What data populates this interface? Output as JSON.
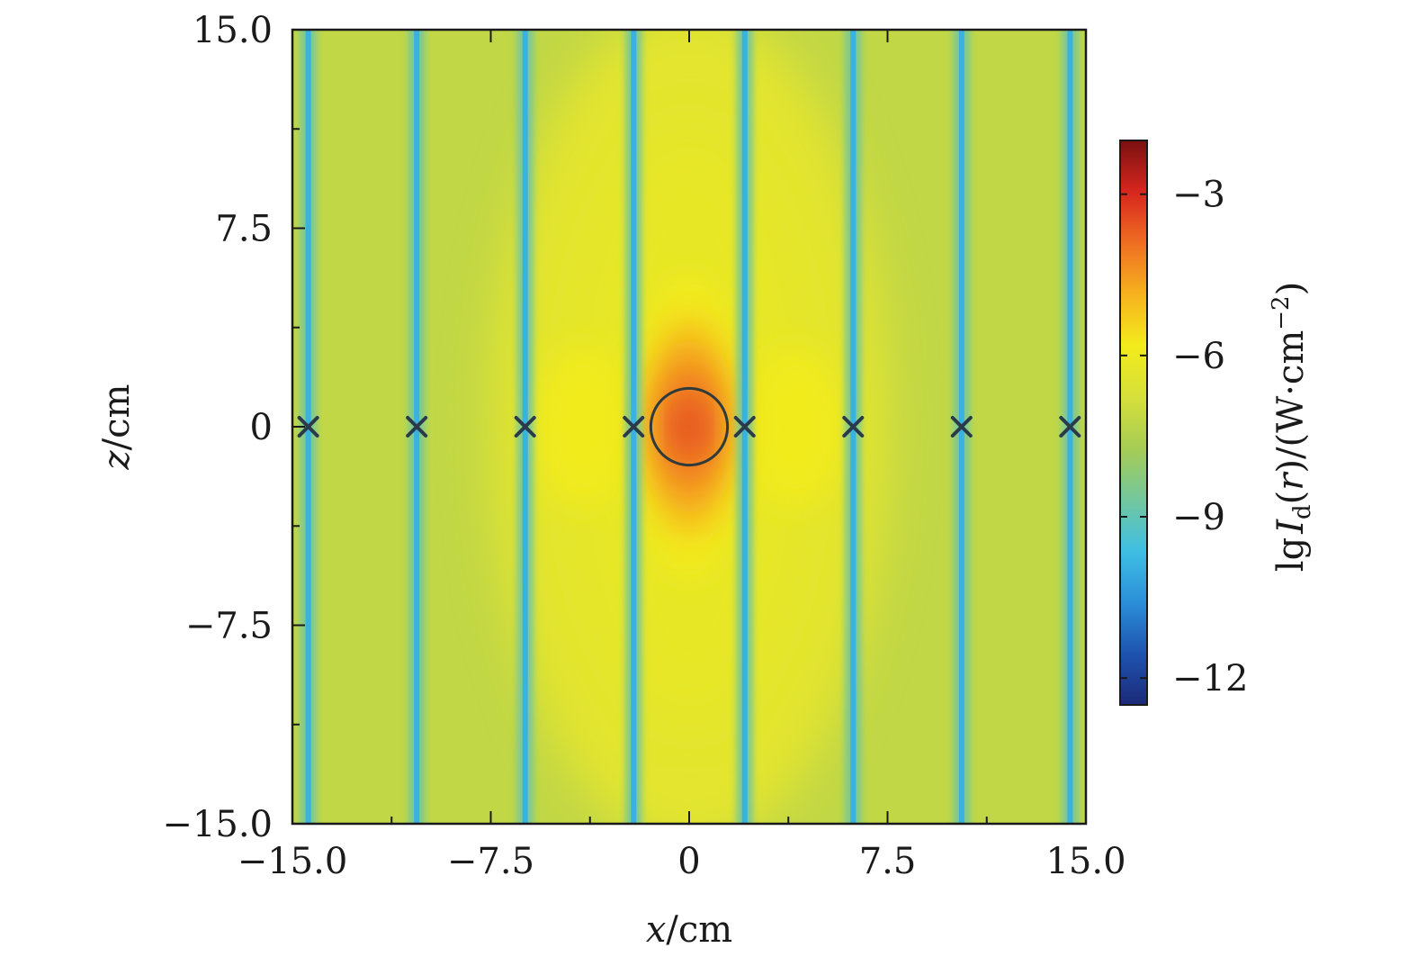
{
  "chart_data": {
    "type": "heatmap",
    "xlabel": {
      "var": "x",
      "unit": "/cm"
    },
    "ylabel": {
      "var": "z",
      "unit": "/cm"
    },
    "xlim": [
      -15.0,
      15.0
    ],
    "ylim": [
      -15.0,
      15.0
    ],
    "x_ticks": [
      {
        "value": -15.0,
        "label": "−15.0"
      },
      {
        "value": -7.5,
        "label": "−7.5"
      },
      {
        "value": 0,
        "label": "0"
      },
      {
        "value": 7.5,
        "label": "7.5"
      },
      {
        "value": 15.0,
        "label": "15.0"
      }
    ],
    "y_ticks": [
      {
        "value": 15.0,
        "label": "15.0"
      },
      {
        "value": 7.5,
        "label": "7.5"
      },
      {
        "value": 0,
        "label": "0"
      },
      {
        "value": -7.5,
        "label": "−7.5"
      },
      {
        "value": -15.0,
        "label": "−15.0"
      }
    ],
    "minor_ticks": [
      -11.25,
      -3.75,
      3.75,
      11.25
    ],
    "colorbar": {
      "label_parts": {
        "lg": "lg",
        "I": "I",
        "sub": "d",
        "arg_open": "(",
        "arg": "r",
        "arg_close": ")",
        "unit": "/(W·cm",
        "exp": "−2",
        "unit_close": ")"
      },
      "range": [
        -12.5,
        -2
      ],
      "ticks": [
        {
          "value": -3,
          "label": "−3"
        },
        {
          "value": -6,
          "label": "−6"
        },
        {
          "value": -9,
          "label": "−9"
        },
        {
          "value": -12,
          "label": "−12"
        }
      ],
      "colormap": [
        "#1c2a78",
        "#1e53b0",
        "#2b8fd8",
        "#3fbfe3",
        "#74c79e",
        "#a6cc54",
        "#d6e03a",
        "#f3ec1c",
        "#f6b21e",
        "#ef6e22",
        "#d7261e",
        "#7a1010"
      ]
    },
    "field": {
      "background_level": -7.2,
      "peak_level": -3.4,
      "side_lobe_level": -5.9,
      "side_lobe_x": [
        -4,
        4
      ],
      "minima_level": -9.6,
      "minima_x": [
        -14.4,
        -10.3,
        -6.2,
        -2.1,
        2.1,
        6.2,
        10.3,
        14.4
      ]
    },
    "markers": {
      "x_positions": [
        -14.4,
        -10.3,
        -6.2,
        -2.1,
        2.1,
        6.2,
        10.3,
        14.4
      ],
      "z": 0,
      "circle": {
        "cx": 0,
        "cz": 0,
        "radius": 1.45
      }
    }
  }
}
